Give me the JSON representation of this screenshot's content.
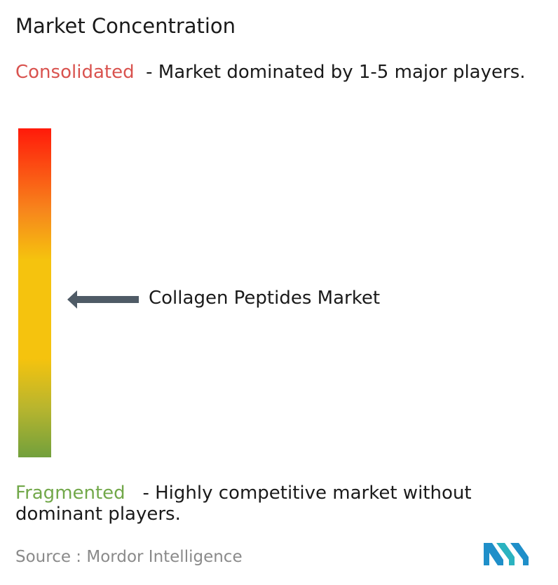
{
  "header": {
    "title": "Market Concentration"
  },
  "consolidated": {
    "label": "Consolidated",
    "description": "- Market dominated by 1-5 major players."
  },
  "marker": {
    "label": "Collagen Peptides Market"
  },
  "fragmented": {
    "label": "Fragmented",
    "description": "- Highly competitive market without dominant players."
  },
  "source": {
    "label": "Source :",
    "name": "Mordor Intelligence"
  }
}
